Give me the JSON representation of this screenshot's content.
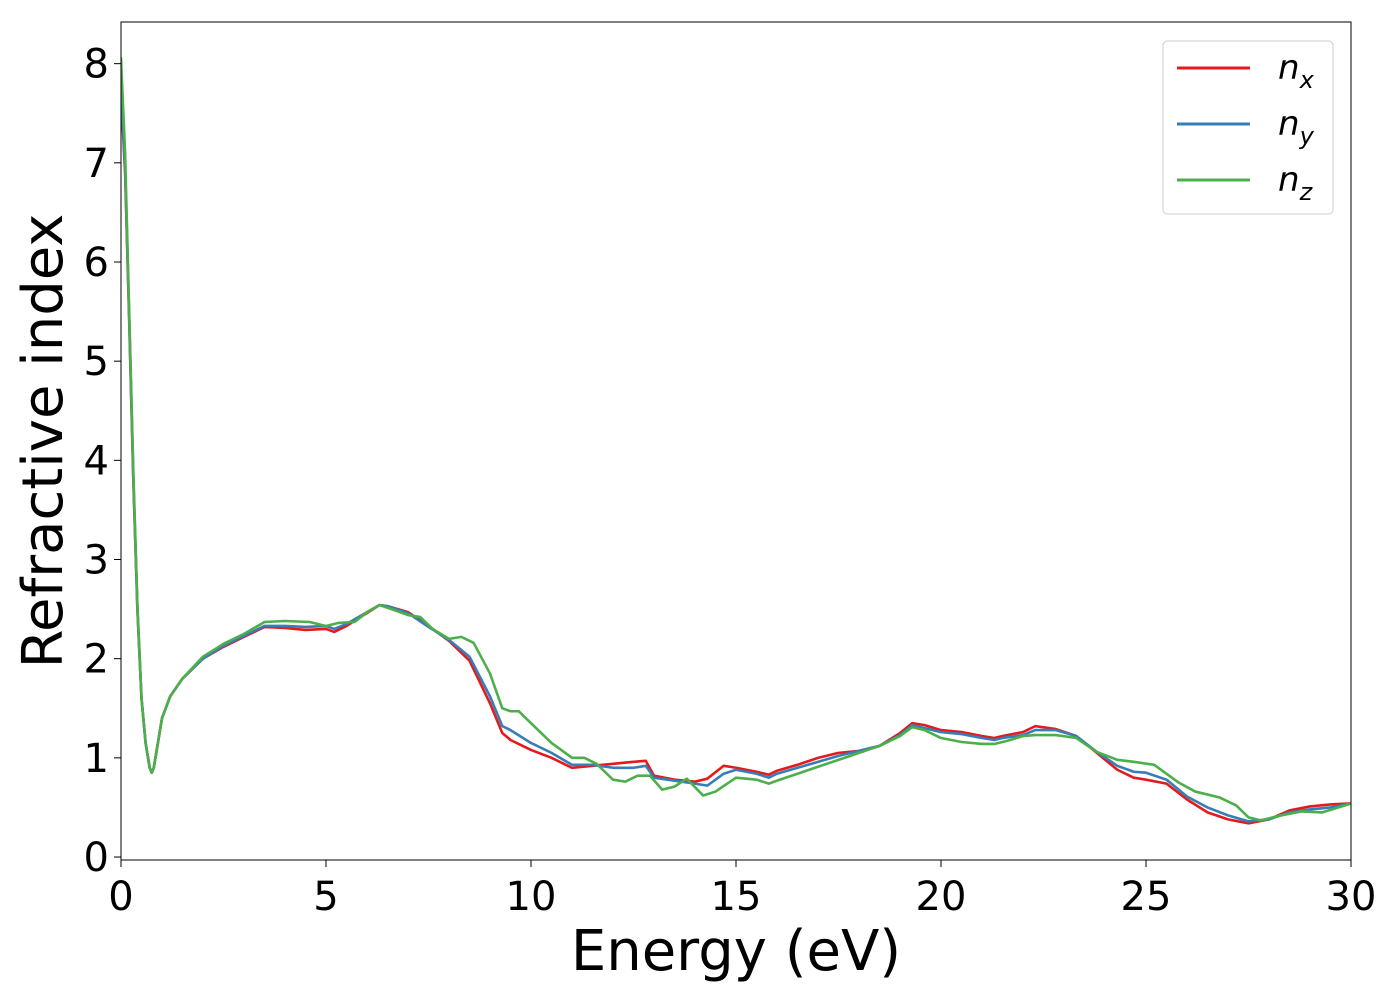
{
  "chart_data": {
    "type": "line",
    "xlabel": "Energy (eV)",
    "ylabel": "Refractive index",
    "xlim": [
      0,
      30
    ],
    "ylim": [
      -0.03,
      8.42
    ],
    "xticks": [
      0,
      5,
      10,
      15,
      20,
      25,
      30
    ],
    "yticks": [
      0,
      1,
      2,
      3,
      4,
      5,
      6,
      7,
      8
    ],
    "grid": false,
    "legend_position": "top-right",
    "series": [
      {
        "name": "n",
        "subscript": "x",
        "color": "#e41a1c",
        "x": [
          0,
          0.1,
          0.2,
          0.3,
          0.4,
          0.5,
          0.6,
          0.7,
          0.75,
          0.8,
          0.9,
          1.0,
          1.2,
          1.5,
          2.0,
          2.5,
          3.0,
          3.5,
          4.0,
          4.5,
          5.0,
          5.2,
          5.5,
          6.0,
          6.3,
          6.5,
          7.0,
          7.5,
          8.0,
          8.5,
          9.0,
          9.3,
          9.5,
          10.0,
          10.5,
          11.0,
          11.5,
          12.0,
          12.5,
          12.8,
          13.0,
          13.5,
          14.0,
          14.3,
          14.7,
          15.0,
          15.5,
          15.8,
          16.0,
          16.5,
          17.0,
          17.5,
          18.0,
          18.5,
          19.0,
          19.3,
          19.6,
          20.0,
          20.5,
          21.0,
          21.3,
          21.5,
          22.0,
          22.3,
          22.8,
          23.3,
          23.8,
          24.3,
          24.7,
          25.0,
          25.5,
          26.0,
          26.5,
          27.0,
          27.5,
          28.0,
          28.5,
          29.0,
          29.5,
          30.0
        ],
        "y": [
          7.7,
          6.9,
          5.4,
          3.8,
          2.5,
          1.6,
          1.15,
          0.9,
          0.85,
          0.9,
          1.15,
          1.4,
          1.62,
          1.8,
          2.0,
          2.12,
          2.22,
          2.32,
          2.31,
          2.29,
          2.3,
          2.27,
          2.33,
          2.46,
          2.54,
          2.53,
          2.47,
          2.33,
          2.18,
          1.98,
          1.55,
          1.25,
          1.18,
          1.08,
          1.0,
          0.9,
          0.92,
          0.94,
          0.96,
          0.97,
          0.82,
          0.78,
          0.76,
          0.79,
          0.92,
          0.9,
          0.86,
          0.83,
          0.87,
          0.93,
          1.0,
          1.05,
          1.07,
          1.12,
          1.25,
          1.35,
          1.33,
          1.28,
          1.26,
          1.22,
          1.2,
          1.22,
          1.26,
          1.32,
          1.29,
          1.22,
          1.05,
          0.88,
          0.8,
          0.78,
          0.74,
          0.58,
          0.45,
          0.38,
          0.34,
          0.38,
          0.47,
          0.51,
          0.53,
          0.54
        ]
      },
      {
        "name": "n",
        "subscript": "y",
        "color": "#377eb8",
        "x": [
          0,
          0.1,
          0.2,
          0.3,
          0.4,
          0.5,
          0.6,
          0.7,
          0.75,
          0.8,
          0.9,
          1.0,
          1.2,
          1.5,
          2.0,
          2.5,
          3.0,
          3.5,
          4.0,
          4.5,
          5.0,
          5.2,
          5.5,
          6.0,
          6.3,
          6.5,
          7.0,
          7.5,
          8.0,
          8.5,
          9.0,
          9.3,
          9.5,
          10.0,
          10.5,
          11.0,
          11.5,
          12.0,
          12.5,
          12.8,
          13.0,
          13.5,
          14.0,
          14.3,
          14.7,
          15.0,
          15.5,
          15.8,
          16.0,
          16.5,
          17.0,
          17.5,
          18.0,
          18.5,
          19.0,
          19.3,
          19.6,
          20.0,
          20.5,
          21.0,
          21.3,
          21.5,
          22.0,
          22.3,
          22.8,
          23.3,
          23.8,
          24.3,
          24.7,
          25.0,
          25.5,
          26.0,
          26.5,
          27.0,
          27.5,
          28.0,
          28.5,
          29.0,
          29.5,
          30.0
        ],
        "y": [
          7.75,
          6.95,
          5.45,
          3.85,
          2.5,
          1.6,
          1.15,
          0.9,
          0.85,
          0.9,
          1.15,
          1.4,
          1.62,
          1.8,
          2.0,
          2.13,
          2.23,
          2.33,
          2.33,
          2.32,
          2.33,
          2.3,
          2.35,
          2.47,
          2.54,
          2.53,
          2.46,
          2.32,
          2.19,
          2.02,
          1.62,
          1.32,
          1.28,
          1.15,
          1.05,
          0.93,
          0.93,
          0.9,
          0.9,
          0.92,
          0.8,
          0.77,
          0.74,
          0.72,
          0.84,
          0.88,
          0.84,
          0.8,
          0.84,
          0.9,
          0.96,
          1.02,
          1.07,
          1.12,
          1.23,
          1.33,
          1.3,
          1.26,
          1.24,
          1.2,
          1.18,
          1.2,
          1.23,
          1.28,
          1.28,
          1.22,
          1.06,
          0.92,
          0.86,
          0.85,
          0.78,
          0.61,
          0.5,
          0.42,
          0.36,
          0.38,
          0.45,
          0.48,
          0.5,
          0.54
        ]
      },
      {
        "name": "n",
        "subscript": "z",
        "color": "#4daf4a",
        "x": [
          0,
          0.1,
          0.2,
          0.3,
          0.4,
          0.5,
          0.6,
          0.7,
          0.75,
          0.8,
          0.9,
          1.0,
          1.2,
          1.5,
          2.0,
          2.5,
          3.0,
          3.5,
          4.0,
          4.6,
          5.0,
          5.3,
          5.7,
          6.0,
          6.3,
          6.6,
          7.0,
          7.3,
          7.6,
          8.0,
          8.3,
          8.6,
          9.0,
          9.3,
          9.5,
          9.7,
          10.0,
          10.5,
          11.0,
          11.3,
          11.6,
          12.0,
          12.3,
          12.6,
          12.9,
          13.2,
          13.5,
          13.8,
          14.2,
          14.5,
          15.0,
          15.5,
          15.8,
          16.0,
          16.5,
          17.0,
          17.5,
          18.0,
          18.5,
          19.0,
          19.3,
          19.6,
          20.0,
          20.5,
          21.0,
          21.3,
          21.6,
          22.0,
          22.3,
          22.8,
          23.3,
          23.8,
          24.3,
          24.7,
          25.2,
          25.8,
          26.2,
          26.8,
          27.2,
          27.5,
          27.8,
          28.3,
          28.8,
          29.3,
          30.0
        ],
        "y": [
          8.05,
          7.1,
          5.5,
          3.9,
          2.55,
          1.6,
          1.15,
          0.9,
          0.85,
          0.9,
          1.15,
          1.4,
          1.62,
          1.8,
          2.02,
          2.15,
          2.25,
          2.37,
          2.38,
          2.37,
          2.33,
          2.36,
          2.37,
          2.47,
          2.54,
          2.5,
          2.44,
          2.42,
          2.3,
          2.2,
          2.22,
          2.16,
          1.85,
          1.5,
          1.47,
          1.47,
          1.35,
          1.15,
          1.0,
          1.0,
          0.94,
          0.78,
          0.76,
          0.82,
          0.82,
          0.68,
          0.71,
          0.79,
          0.62,
          0.66,
          0.8,
          0.78,
          0.74,
          0.77,
          0.84,
          0.91,
          0.98,
          1.05,
          1.12,
          1.22,
          1.31,
          1.28,
          1.2,
          1.16,
          1.14,
          1.14,
          1.17,
          1.22,
          1.23,
          1.23,
          1.2,
          1.06,
          0.98,
          0.96,
          0.93,
          0.75,
          0.66,
          0.6,
          0.52,
          0.4,
          0.37,
          0.42,
          0.46,
          0.45,
          0.54
        ]
      }
    ]
  }
}
